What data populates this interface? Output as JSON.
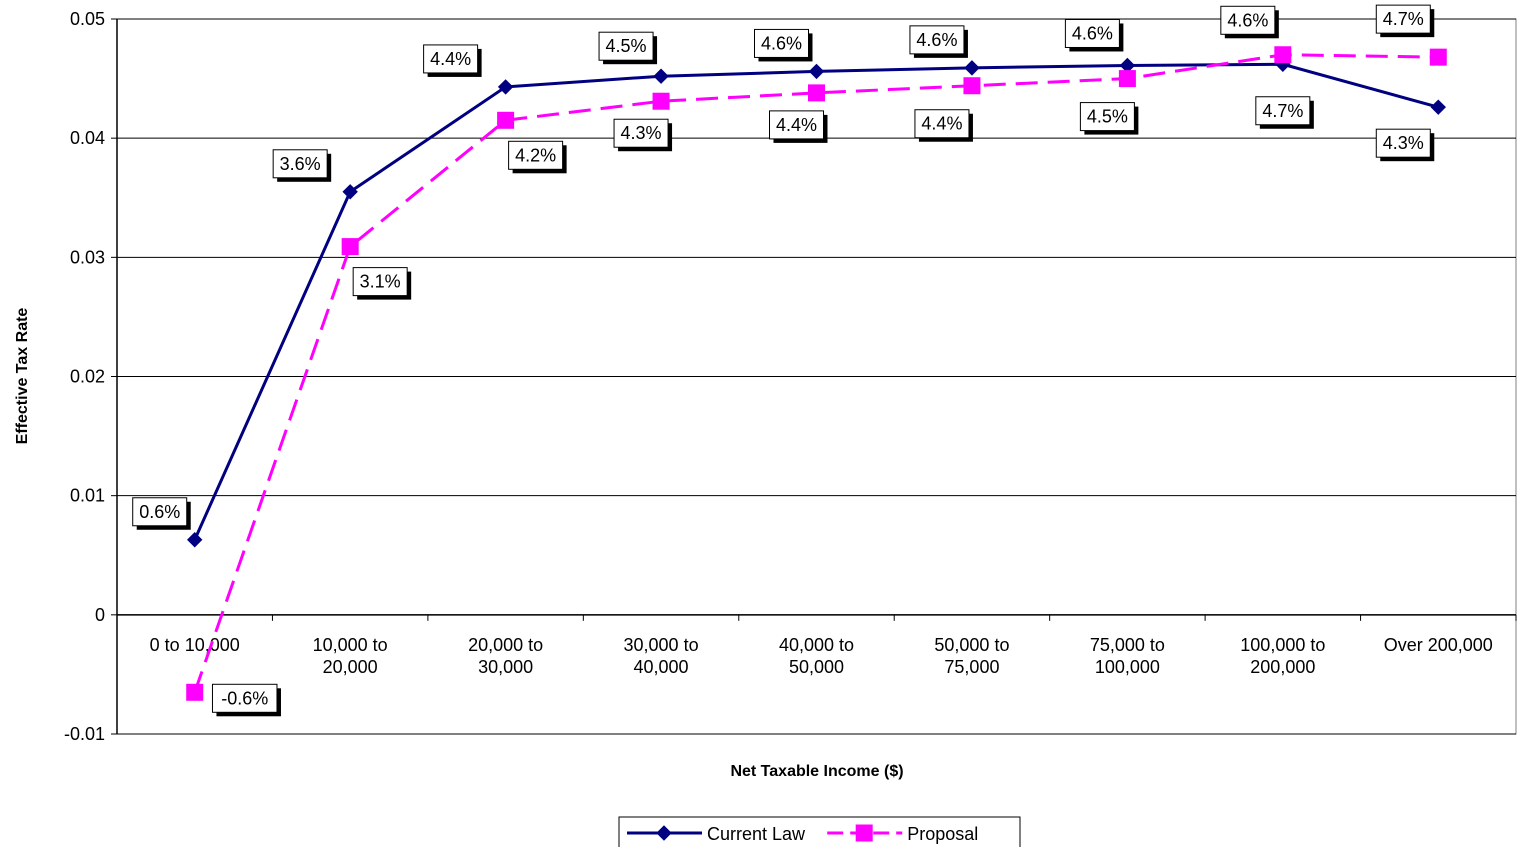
{
  "chart_data": {
    "type": "line",
    "title": "",
    "xlabel": "Net Taxable Income ($)",
    "ylabel": "Effective Tax Rate",
    "ylim": [
      -0.01,
      0.05
    ],
    "yticks": [
      "0.05",
      "0.04",
      "0.03",
      "0.02",
      "0.01",
      "0",
      "-0.01"
    ],
    "ytick_values": [
      0.05,
      0.04,
      0.03,
      0.02,
      0.01,
      0,
      -0.01
    ],
    "grid": true,
    "legend_placement": "bottom-center",
    "categories": [
      [
        "0 to 10,000"
      ],
      [
        "10,000 to",
        "20,000"
      ],
      [
        "20,000 to",
        "30,000"
      ],
      [
        "30,000 to",
        "40,000"
      ],
      [
        "40,000 to",
        "50,000"
      ],
      [
        "50,000 to",
        "75,000"
      ],
      [
        "75,000 to",
        "100,000"
      ],
      [
        "100,000 to",
        "200,000"
      ],
      [
        "Over 200,000"
      ]
    ],
    "series": [
      {
        "name": "Current Law",
        "color": "#000080",
        "dash": "solid",
        "marker": "diamond",
        "values": [
          0.0063,
          0.0355,
          0.0443,
          0.0452,
          0.0456,
          0.0459,
          0.0461,
          0.0462,
          0.0426
        ],
        "labels": [
          "0.6%",
          "3.6%",
          "4.4%",
          "4.5%",
          "4.6%",
          "4.6%",
          "4.6%",
          "4.6%",
          "4.3%"
        ]
      },
      {
        "name": "Proposal",
        "color": "#ff00ff",
        "dash": "dashed",
        "marker": "square",
        "values": [
          -0.0065,
          0.0309,
          0.0415,
          0.0431,
          0.0438,
          0.0444,
          0.045,
          0.047,
          0.0468
        ],
        "labels": [
          "-0.6%",
          "3.1%",
          "4.2%",
          "4.3%",
          "4.4%",
          "4.4%",
          "4.5%",
          "4.7%",
          "4.7%"
        ]
      }
    ]
  }
}
